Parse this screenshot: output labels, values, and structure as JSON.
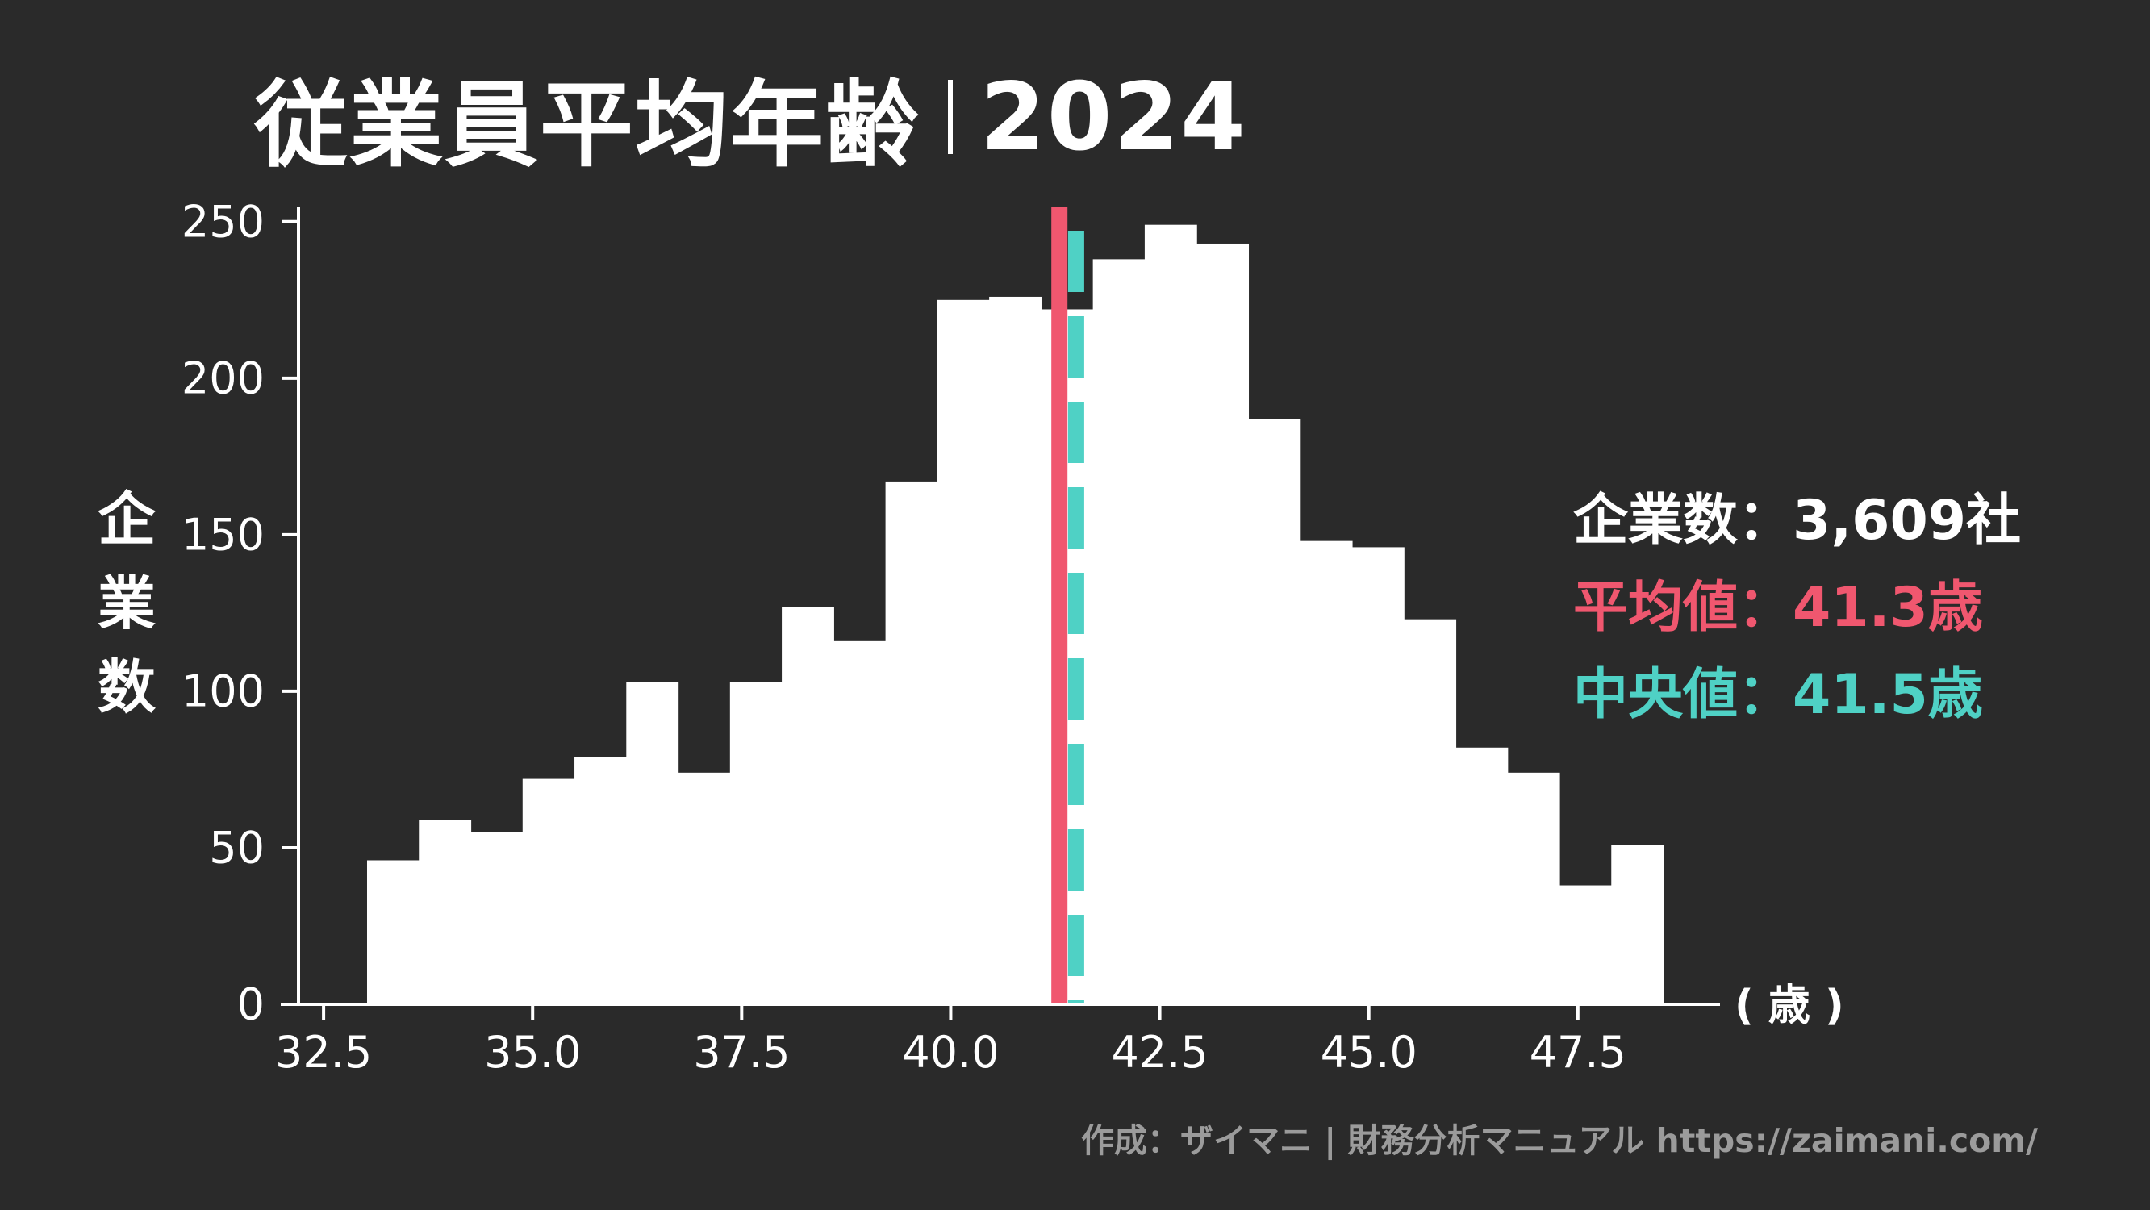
{
  "title": {
    "main": "従業員平均年齢",
    "year": "2024"
  },
  "stats": {
    "count_label": "企業数",
    "count_value": "3,609社",
    "mean_label": "平均値",
    "mean_value": "41.3歳",
    "median_label": "中央値",
    "median_value": "41.5歳",
    "separator": "："
  },
  "credit": "作成：ザイマニ | 財務分析マニュアル https://zaimani.com/",
  "colors": {
    "background": "#2a2a2a",
    "bars": "#ffffff",
    "mean": "#f0576f",
    "median": "#4fd1c5",
    "credit": "#9b9b9b"
  },
  "chart_data": {
    "type": "bar",
    "title": "従業員平均年齢 2024",
    "xlabel": "( 歳 )",
    "ylabel": "企業数",
    "xlim": [
      32.2,
      49.2
    ],
    "ylim": [
      0,
      260
    ],
    "xticks": [
      32.5,
      35.0,
      37.5,
      40.0,
      42.5,
      45.0,
      47.5
    ],
    "xtick_labels": [
      "32.5",
      "35.0",
      "37.5",
      "40.0",
      "42.5",
      "45.0",
      "47.5"
    ],
    "yticks": [
      0,
      50,
      100,
      150,
      200,
      250
    ],
    "ytick_labels": [
      "0",
      "50",
      "100",
      "150",
      "200",
      "250"
    ],
    "bins": [
      {
        "x0": 32.4,
        "x1": 33.02,
        "value": 0
      },
      {
        "x0": 33.02,
        "x1": 33.64,
        "value": 46
      },
      {
        "x0": 33.64,
        "x1": 34.26,
        "value": 59
      },
      {
        "x0": 34.26,
        "x1": 34.88,
        "value": 55
      },
      {
        "x0": 34.88,
        "x1": 35.5,
        "value": 72
      },
      {
        "x0": 35.5,
        "x1": 36.12,
        "value": 79
      },
      {
        "x0": 36.12,
        "x1": 36.74,
        "value": 103
      },
      {
        "x0": 36.74,
        "x1": 37.36,
        "value": 74
      },
      {
        "x0": 37.36,
        "x1": 37.98,
        "value": 103
      },
      {
        "x0": 37.98,
        "x1": 38.6,
        "value": 127
      },
      {
        "x0": 38.6,
        "x1": 39.22,
        "value": 116
      },
      {
        "x0": 39.22,
        "x1": 39.84,
        "value": 167
      },
      {
        "x0": 39.84,
        "x1": 40.46,
        "value": 225
      },
      {
        "x0": 40.46,
        "x1": 41.08,
        "value": 226
      },
      {
        "x0": 41.08,
        "x1": 41.7,
        "value": 222
      },
      {
        "x0": 41.7,
        "x1": 42.32,
        "value": 238
      },
      {
        "x0": 42.32,
        "x1": 42.94,
        "value": 249
      },
      {
        "x0": 42.94,
        "x1": 43.56,
        "value": 243
      },
      {
        "x0": 43.56,
        "x1": 44.18,
        "value": 187
      },
      {
        "x0": 44.18,
        "x1": 44.8,
        "value": 148
      },
      {
        "x0": 44.8,
        "x1": 45.42,
        "value": 146
      },
      {
        "x0": 45.42,
        "x1": 46.04,
        "value": 123
      },
      {
        "x0": 46.04,
        "x1": 46.66,
        "value": 82
      },
      {
        "x0": 46.66,
        "x1": 47.28,
        "value": 74
      },
      {
        "x0": 47.28,
        "x1": 47.9,
        "value": 38
      },
      {
        "x0": 47.9,
        "x1": 48.52,
        "value": 51
      }
    ],
    "mean_line": {
      "x": 41.3
    },
    "median_line": {
      "x": 41.5
    },
    "grid": false,
    "legend": "right"
  }
}
